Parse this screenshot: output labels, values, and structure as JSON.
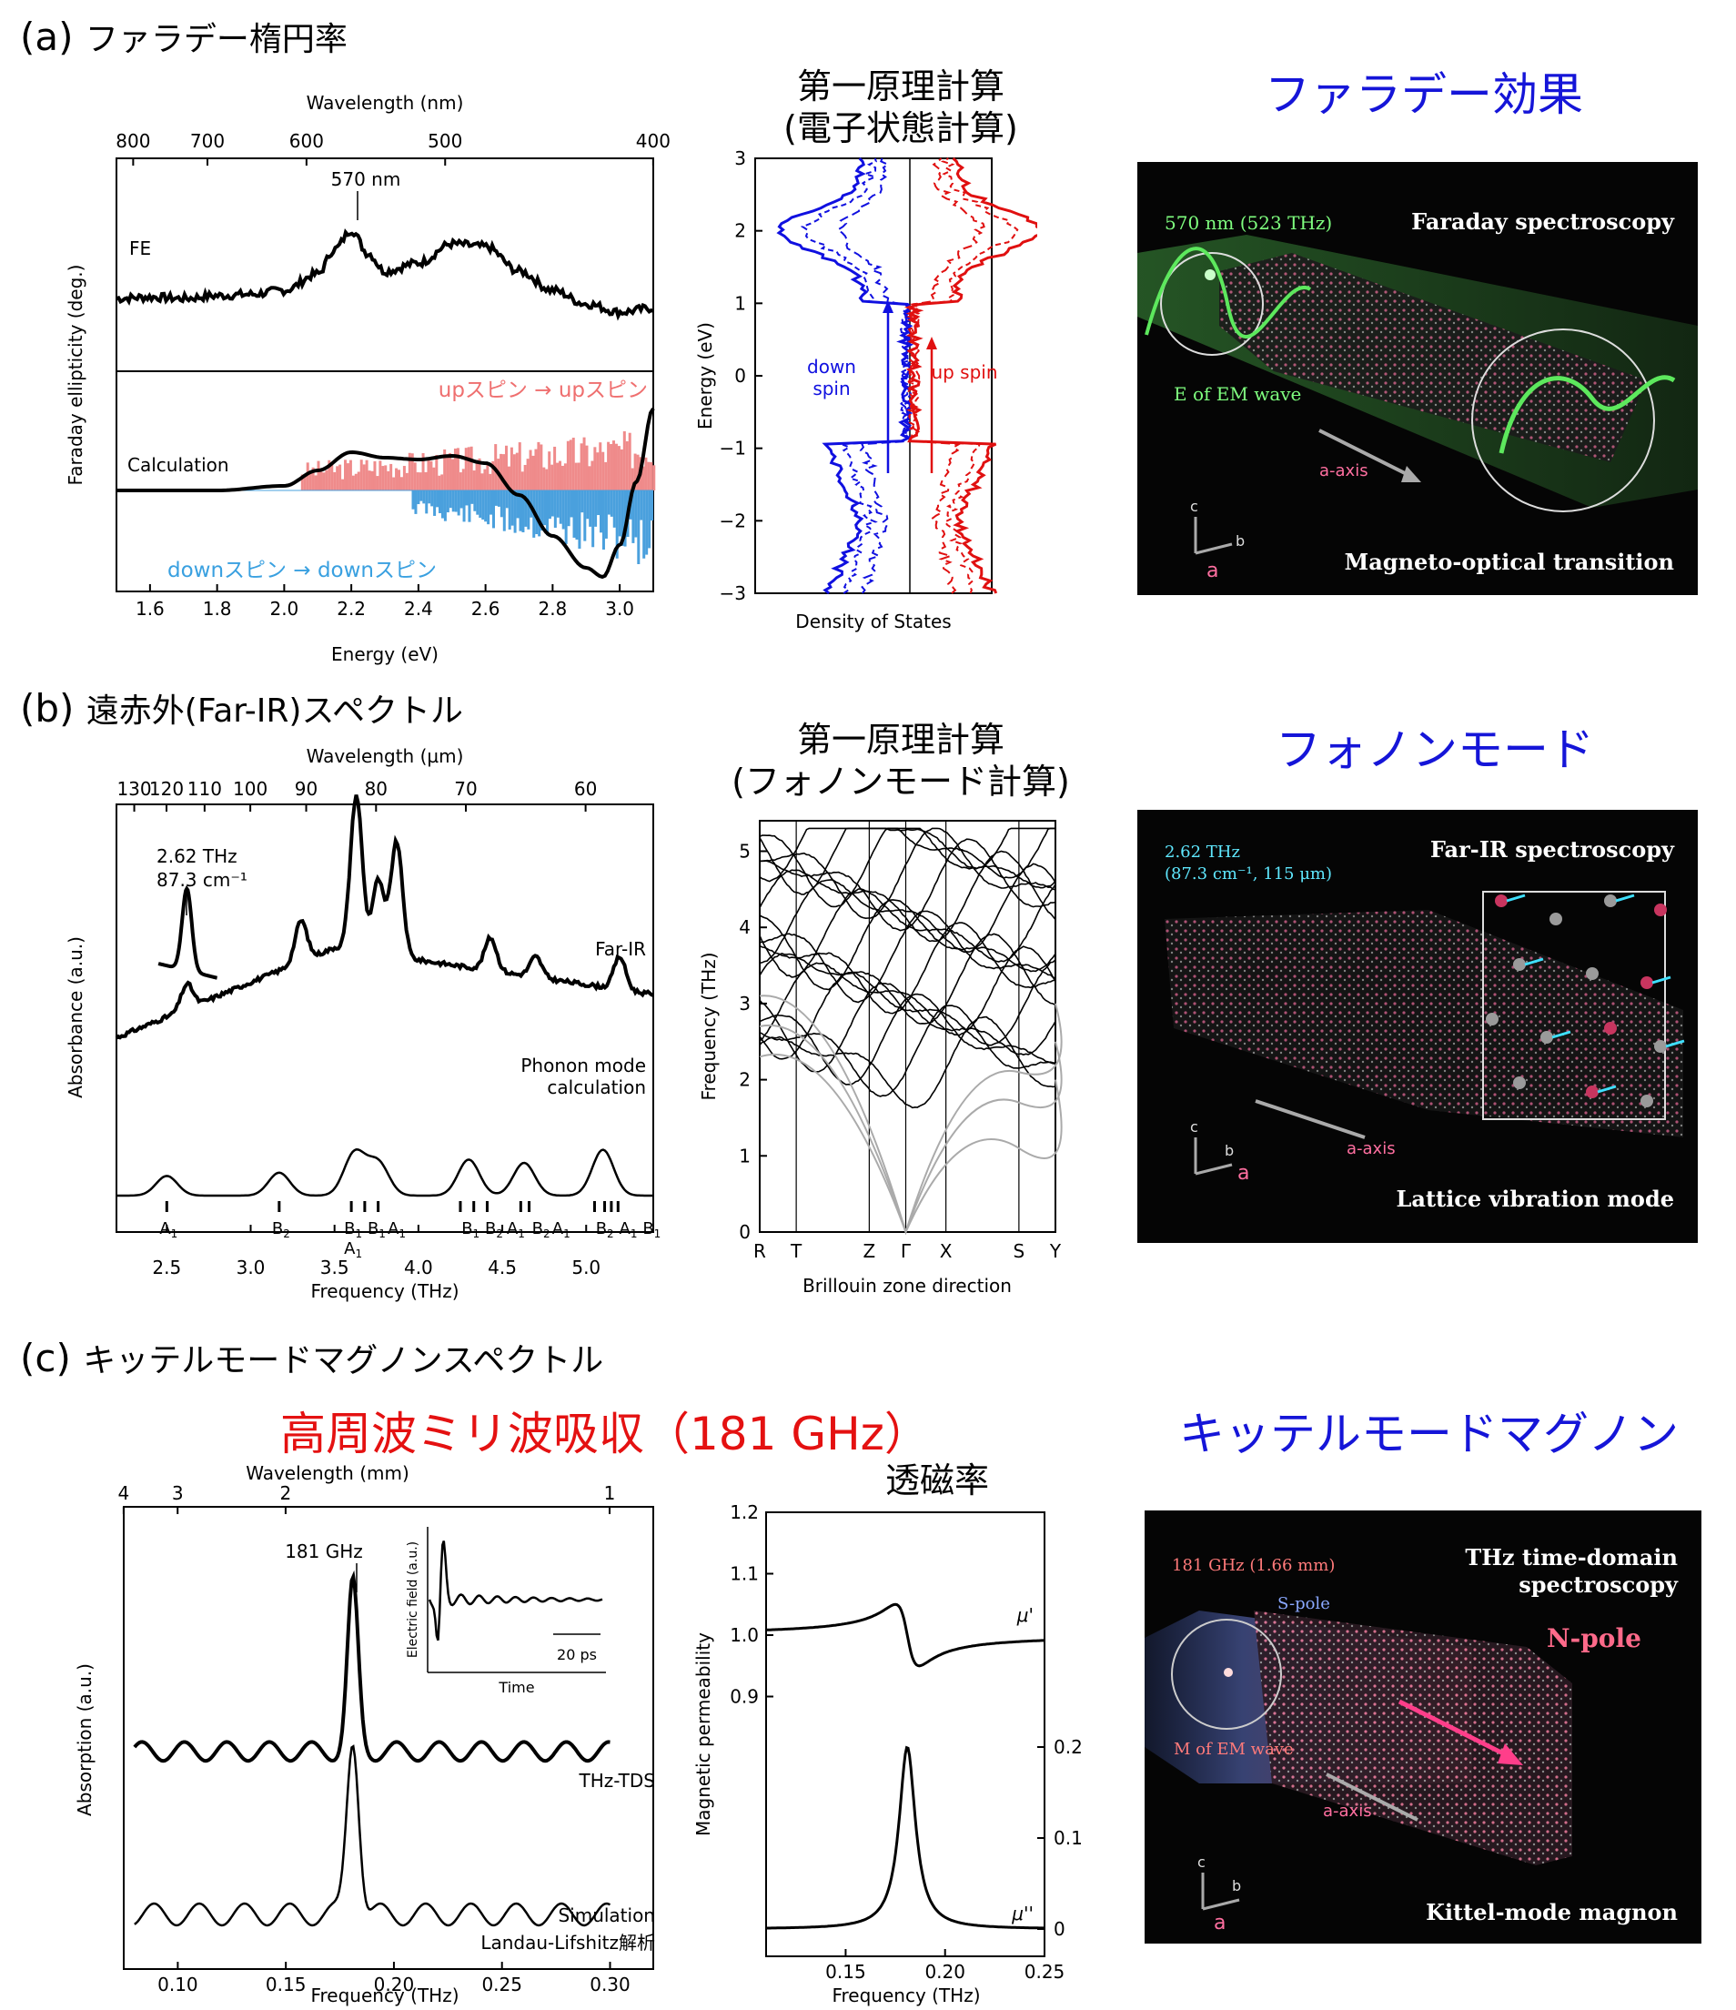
{
  "sections": {
    "a": {
      "marker": "(a)",
      "title": "ファラデー楕円率"
    },
    "b": {
      "marker": "(b)",
      "title": "遠赤外(Far-IR)スペクトル"
    },
    "c": {
      "marker": "(c)",
      "title": "キッテルモードマグノンスペクトル"
    }
  },
  "headings": {
    "a_calc": "第一原理計算\n(電子状態計算)",
    "a_right": "ファラデー効果",
    "b_calc": "第一原理計算\n(フォノンモード計算)",
    "b_right": "フォノンモード",
    "c_center": "高周波ミリ波吸収（181 GHz）",
    "c_perm": "透磁率",
    "c_right": "キッテルモードマグノン"
  },
  "panels": {
    "a": {
      "title": "Faraday spectroscopy",
      "wave": "570 nm (523 THz)",
      "field": "E of EM wave",
      "axis": "a-axis",
      "bottom": "Magneto-optical transition",
      "c": "c",
      "b": "b",
      "a": "a"
    },
    "b": {
      "title": "Far-IR spectroscopy",
      "wave1": "2.62 THz",
      "wave2": "(87.3 cm⁻¹, 115 μm)",
      "axis": "a-axis",
      "bottom": "Lattice vibration mode",
      "c": "c",
      "b": "b",
      "a": "a"
    },
    "c": {
      "title1": "THz time-domain",
      "title2": "spectroscopy",
      "wave": "181 GHz (1.66 mm)",
      "spole": "S-pole",
      "npole": "N-pole",
      "field": "M of EM wave",
      "axis": "a-axis",
      "bottom": "Kittel-mode magnon",
      "c": "c",
      "b": "b",
      "a": "a"
    }
  },
  "chart_data": [
    {
      "id": "faraday",
      "type": "line",
      "xlabel": "Energy (eV)",
      "ylabel": "Faraday ellipticity (deg.)",
      "top_axis_label": "Wavelength (nm)",
      "top_ticks": [
        "800",
        "700",
        "600",
        "500",
        "400"
      ],
      "xlim": [
        1.5,
        3.1
      ],
      "xticks": [
        "1.6",
        "1.8",
        "2.0",
        "2.2",
        "2.4",
        "2.6",
        "2.8",
        "3.0"
      ],
      "annotations": {
        "peak": "570 nm",
        "fe": "FE",
        "calc": "Calculation",
        "up": "upスピン → upスピン",
        "down": "downスピン → downスピン"
      },
      "series": [
        {
          "name": "FE",
          "x": [
            1.5,
            1.6,
            1.7,
            1.8,
            1.9,
            2.0,
            2.1,
            2.15,
            2.2,
            2.25,
            2.3,
            2.4,
            2.5,
            2.6,
            2.7,
            2.8,
            2.9,
            3.0,
            3.1
          ],
          "y": [
            0.12,
            0.13,
            0.12,
            0.14,
            0.15,
            0.18,
            0.3,
            0.48,
            0.62,
            0.45,
            0.32,
            0.38,
            0.52,
            0.5,
            0.32,
            0.18,
            0.08,
            0.02,
            0.05
          ]
        },
        {
          "name": "Calculation",
          "x": [
            1.5,
            1.8,
            2.0,
            2.1,
            2.2,
            2.3,
            2.4,
            2.5,
            2.6,
            2.7,
            2.8,
            2.9,
            2.95,
            3.0,
            3.05,
            3.1
          ],
          "y": [
            0,
            0,
            0.05,
            0.22,
            0.42,
            0.36,
            0.34,
            0.38,
            0.3,
            -0.05,
            -0.5,
            -0.85,
            -0.95,
            -0.6,
            0.1,
            0.9
          ]
        }
      ]
    },
    {
      "id": "dos",
      "type": "line",
      "xlabel": "Density of States",
      "ylabel": "Energy (eV)",
      "ylim": [
        -3,
        3
      ],
      "yticks": [
        "−3",
        "−2",
        "−1",
        "0",
        "1",
        "2",
        "3"
      ],
      "annotations": {
        "down": "down\nspin",
        "up": "up spin"
      }
    },
    {
      "id": "farir",
      "type": "line",
      "xlabel": "Frequency (THz)",
      "ylabel": "Absorbance (a.u.)",
      "top_axis_label": "Wavelength (µm)",
      "top_ticks": [
        "130",
        "120",
        "110",
        "100",
        "90",
        "80",
        "70",
        "60"
      ],
      "xlim": [
        2.2,
        5.4
      ],
      "xticks": [
        "2.5",
        "3.0",
        "3.5",
        "4.0",
        "4.5",
        "5.0"
      ],
      "annotations": {
        "peak1": "2.62 THz",
        "peak2": "87.3 cm⁻¹",
        "farir": "Far-IR",
        "phonon1": "Phonon mode",
        "phonon2": "calculation"
      },
      "mode_labels": [
        "A1",
        "B2",
        "B1",
        "A1",
        "B1",
        "A1",
        "B1",
        "B2",
        "A1",
        "B2",
        "A1",
        "B2",
        "A1",
        "B1"
      ],
      "series": [
        {
          "name": "Far-IR",
          "x": [
            2.2,
            2.5,
            2.62,
            2.8,
            3.0,
            3.3,
            3.5,
            3.63,
            3.7,
            3.85,
            4.0,
            4.3,
            4.43,
            4.7,
            5.0,
            5.2,
            5.4
          ],
          "y": [
            0.35,
            0.38,
            0.42,
            0.46,
            0.5,
            0.62,
            0.72,
            1.0,
            0.8,
            0.9,
            0.5,
            0.48,
            0.55,
            0.5,
            0.53,
            0.62,
            0.55
          ]
        },
        {
          "name": "Phonon mode calculation",
          "x": [
            2.5,
            3.17,
            3.62,
            3.76,
            4.3,
            4.63,
            5.1
          ],
          "y": [
            0.12,
            0.14,
            0.26,
            0.2,
            0.22,
            0.2,
            0.28
          ]
        }
      ]
    },
    {
      "id": "phonon",
      "type": "line",
      "xlabel": "Brillouin zone direction",
      "ylabel": "Frequency (THz)",
      "ylim": [
        0,
        5.4
      ],
      "yticks": [
        "0",
        "1",
        "2",
        "3",
        "4",
        "5"
      ],
      "xticks": [
        "R",
        "T",
        "Z",
        "Γ",
        "X",
        "S",
        "Y"
      ]
    },
    {
      "id": "thz",
      "type": "line",
      "xlabel": "Frequency (THz)",
      "ylabel": "Absorption (a.u.)",
      "top_axis_label": "Wavelength (mm)",
      "top_ticks": [
        "4",
        "3",
        "2",
        "1"
      ],
      "xlim": [
        0.075,
        0.32
      ],
      "xticks": [
        "0.10",
        "0.15",
        "0.20",
        "0.25",
        "0.30"
      ],
      "annotations": {
        "peak": "181 GHz",
        "tds": "THz-TDS",
        "sim": "Simulation",
        "ll": "Landau-Lifshitz解析",
        "inset_y": "Electric field (a.u.)",
        "inset_x": "Time",
        "inset_scale": "20 ps"
      },
      "series": [
        {
          "name": "THz-TDS",
          "x": [
            0.075,
            0.1,
            0.12,
            0.15,
            0.17,
            0.181,
            0.19,
            0.22,
            0.25,
            0.3
          ],
          "y": [
            0.2,
            0.25,
            0.22,
            0.25,
            0.3,
            0.95,
            0.3,
            0.26,
            0.27,
            0.25
          ]
        },
        {
          "name": "Simulation",
          "x": [
            0.08,
            0.1,
            0.12,
            0.15,
            0.17,
            0.181,
            0.19,
            0.22,
            0.25,
            0.3
          ],
          "y": [
            0.05,
            0.1,
            0.08,
            0.1,
            0.15,
            0.85,
            0.2,
            0.12,
            0.1,
            0.12
          ]
        }
      ]
    },
    {
      "id": "permeability",
      "type": "line",
      "xlabel": "Frequency (THz)",
      "ylabel": "Magnetic permeability",
      "xlim": [
        0.11,
        0.25
      ],
      "xticks": [
        "0.15",
        "0.20",
        "0.25"
      ],
      "yticks_left": [
        "0.9",
        "1.0",
        "1.1",
        "1.2"
      ],
      "yticks_right": [
        "0",
        "0.1",
        "0.2"
      ],
      "series": [
        {
          "name": "μ'",
          "x": [
            0.11,
            0.15,
            0.17,
            0.178,
            0.181,
            0.185,
            0.2,
            0.25
          ],
          "y": [
            1.01,
            1.03,
            1.07,
            1.1,
            1.04,
            0.9,
            0.96,
            0.99
          ]
        },
        {
          "name": "μ''",
          "x": [
            0.11,
            0.15,
            0.17,
            0.177,
            0.181,
            0.185,
            0.19,
            0.21,
            0.25
          ],
          "y": [
            0,
            0.005,
            0.03,
            0.1,
            0.2,
            0.12,
            0.04,
            0.01,
            0
          ]
        }
      ]
    }
  ]
}
